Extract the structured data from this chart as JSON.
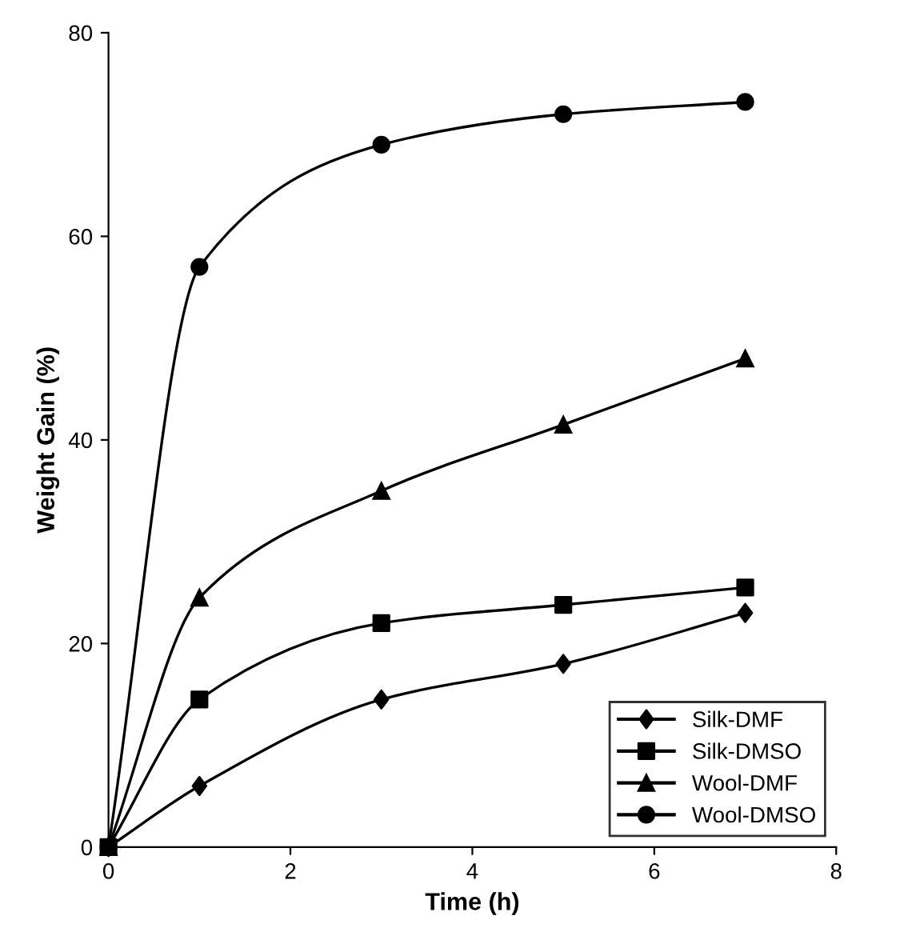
{
  "chart_data": {
    "type": "line",
    "xlabel": "Time (h)",
    "ylabel": "Weight Gain (%)",
    "x": [
      0,
      1,
      3,
      5,
      7
    ],
    "series": [
      {
        "name": "Silk-DMF",
        "color": "#000000",
        "marker": "diamond",
        "values": [
          0,
          6,
          14.5,
          18,
          23
        ]
      },
      {
        "name": "Silk-DMSO",
        "color": "#000000",
        "marker": "square",
        "values": [
          0,
          14.5,
          22,
          23.8,
          25.5
        ]
      },
      {
        "name": "Wool-DMF",
        "color": "#000000",
        "marker": "triangle",
        "values": [
          0,
          24.5,
          35,
          41.5,
          48
        ]
      },
      {
        "name": "Wool-DMSO",
        "color": "#000000",
        "marker": "circle",
        "values": [
          0,
          57,
          69,
          72,
          73.2
        ]
      }
    ],
    "xlim": [
      0,
      8
    ],
    "xticks": [
      0,
      2,
      4,
      6,
      8
    ],
    "ylim": [
      0,
      80
    ],
    "yticks": [
      0,
      20,
      40,
      60,
      80
    ],
    "grid": false,
    "legend": "bottom right",
    "line_style": "solid"
  }
}
